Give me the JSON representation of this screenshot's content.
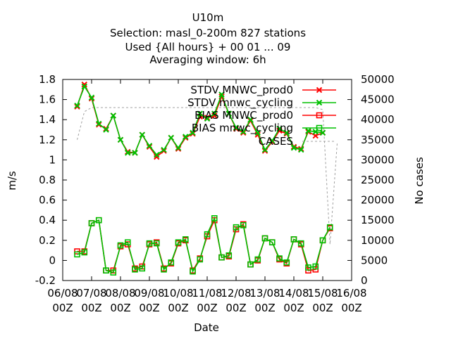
{
  "chart_data": {
    "type": "line",
    "title_lines": [
      "U10m",
      "Selection: masl_0-200m    827 stations",
      "Used {All hours} + 00 01 ... 09",
      "Averaging window:  6h"
    ],
    "xlabel": "Date",
    "ylabel": "m/s",
    "y2label": "No cases",
    "x_unit": "days since 06/08 00Z",
    "xlim": [
      0,
      10
    ],
    "ylim": [
      -0.2,
      1.8
    ],
    "y2lim": [
      0,
      50000
    ],
    "x_ticks": [
      {
        "x": 0,
        "line1": "06/08",
        "line2": "00Z"
      },
      {
        "x": 1,
        "line1": "07/08",
        "line2": "00Z"
      },
      {
        "x": 2,
        "line1": "08/08",
        "line2": "00Z"
      },
      {
        "x": 3,
        "line1": "09/08",
        "line2": "00Z"
      },
      {
        "x": 4,
        "line1": "10/08",
        "line2": "00Z"
      },
      {
        "x": 5,
        "line1": "11/08",
        "line2": "00Z"
      },
      {
        "x": 6,
        "line1": "12/08",
        "line2": "00Z"
      },
      {
        "x": 7,
        "line1": "13/08",
        "line2": "00Z"
      },
      {
        "x": 8,
        "line1": "14/08",
        "line2": "00Z"
      },
      {
        "x": 9,
        "line1": "15/08",
        "line2": "00Z"
      },
      {
        "x": 10,
        "line1": "16/08",
        "line2": "00Z"
      }
    ],
    "y_ticks": [
      -0.2,
      0,
      0.2,
      0.4,
      0.6,
      0.8,
      1,
      1.2,
      1.4,
      1.6,
      1.8
    ],
    "y2_ticks": [
      0,
      5000,
      10000,
      15000,
      20000,
      25000,
      30000,
      35000,
      40000,
      45000,
      50000
    ],
    "x": [
      0.5,
      0.75,
      1.0,
      1.25,
      1.5,
      1.75,
      2.0,
      2.25,
      2.5,
      2.75,
      3.0,
      3.25,
      3.5,
      3.75,
      4.0,
      4.25,
      4.5,
      4.75,
      5.0,
      5.25,
      5.5,
      5.75,
      6.0,
      6.25,
      6.5,
      6.75,
      7.0,
      7.25,
      7.5,
      7.75,
      8.0,
      8.25,
      8.5,
      8.75,
      9.0,
      9.25,
      9.5
    ],
    "series": [
      {
        "name": "STDV MNWC_prod0",
        "marker": "x",
        "color": "#ff0000",
        "values": [
          1.53,
          1.75,
          1.61,
          1.35,
          1.31,
          1.44,
          1.2,
          1.08,
          1.07,
          1.25,
          1.13,
          1.03,
          1.09,
          1.22,
          1.11,
          1.22,
          1.26,
          1.43,
          1.42,
          1.44,
          1.63,
          1.46,
          1.31,
          1.27,
          1.39,
          1.25,
          1.09,
          1.18,
          1.29,
          1.26,
          1.13,
          1.11,
          1.28,
          1.24,
          1.27,
          null,
          null
        ]
      },
      {
        "name": "STDV mnwc_cycling",
        "marker": "x",
        "color": "#00c000",
        "values": [
          1.54,
          1.73,
          1.62,
          1.36,
          1.3,
          1.44,
          1.2,
          1.07,
          1.07,
          1.25,
          1.14,
          1.05,
          1.1,
          1.22,
          1.12,
          1.23,
          1.27,
          1.46,
          1.41,
          1.46,
          1.65,
          1.46,
          1.32,
          1.28,
          1.4,
          1.27,
          1.1,
          1.19,
          1.31,
          1.27,
          1.12,
          1.1,
          1.29,
          1.28,
          1.27,
          null,
          null
        ]
      },
      {
        "name": "BIAS MNWC_prod0",
        "marker": "square",
        "color": "#ff0000",
        "values": [
          0.09,
          0.09,
          0.37,
          0.4,
          -0.1,
          -0.1,
          0.14,
          0.16,
          -0.08,
          -0.06,
          0.16,
          0.18,
          -0.08,
          -0.03,
          0.17,
          0.2,
          -0.1,
          0.02,
          0.24,
          0.4,
          0.03,
          0.04,
          0.31,
          0.36,
          -0.04,
          0.0,
          0.22,
          0.18,
          0.01,
          -0.03,
          0.21,
          0.16,
          -0.1,
          -0.09,
          0.2,
          0.32,
          null
        ]
      },
      {
        "name": "BIAS mnwc_cycling",
        "marker": "square",
        "color": "#00c000",
        "values": [
          0.06,
          0.08,
          0.37,
          0.4,
          -0.1,
          -0.12,
          0.15,
          0.18,
          -0.09,
          -0.08,
          0.17,
          0.17,
          -0.09,
          -0.02,
          0.18,
          0.21,
          -0.11,
          0.01,
          0.26,
          0.42,
          0.03,
          0.05,
          0.33,
          0.35,
          -0.04,
          0.01,
          0.22,
          0.18,
          0.02,
          -0.02,
          0.21,
          0.17,
          -0.07,
          -0.06,
          0.2,
          0.33,
          null
        ]
      },
      {
        "name": "CASES",
        "axis": "y2",
        "style": "dashed",
        "color": "#a0a0a0",
        "values": [
          35000,
          42000,
          43000,
          43000,
          43000,
          43000,
          43000,
          43000,
          43000,
          43000,
          43000,
          43000,
          43000,
          43000,
          43000,
          43000,
          43000,
          43000,
          43000,
          43000,
          43000,
          43000,
          43000,
          43000,
          43000,
          43000,
          43000,
          43000,
          43000,
          43000,
          43000,
          43000,
          43000,
          43000,
          42500,
          9000,
          34200
        ]
      }
    ],
    "legend_position": "top-right",
    "grid": false
  }
}
